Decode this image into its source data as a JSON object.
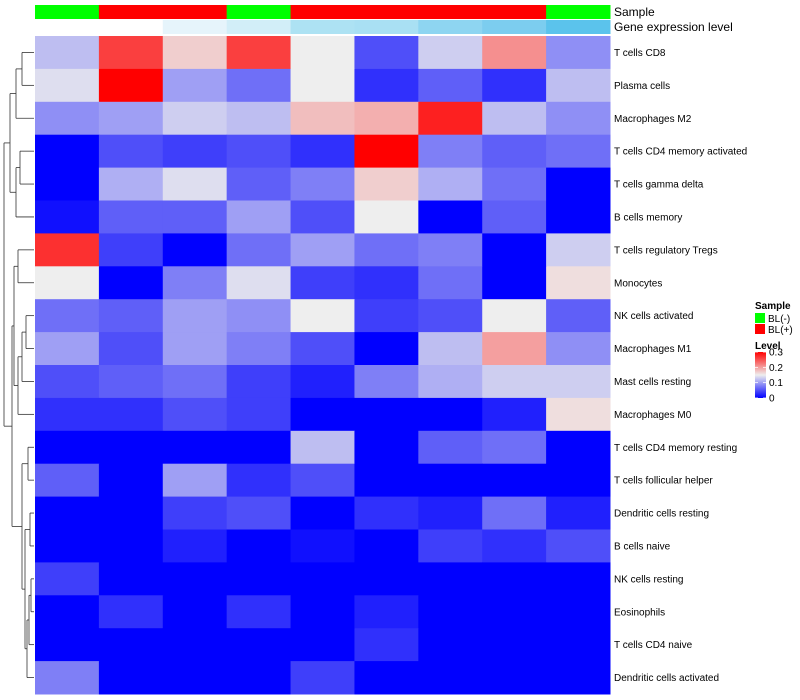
{
  "chart_data": {
    "type": "heatmap",
    "annotation_labels": [
      "Sample",
      "Gene expression level"
    ],
    "sample_groups": [
      "BL(-)",
      "BL(+)",
      "BL(+)",
      "BL(-)",
      "BL(+)",
      "BL(+)",
      "BL(+)",
      "BL(+)",
      "BL(-)"
    ],
    "gene_expression_colors": [
      "#ffffff",
      "#ffffff",
      "#e6f4fb",
      "#d2eef8",
      "#ade2f3",
      "#a9e0f3",
      "#8ed5f1",
      "#7ccdef",
      "#5bc3ec"
    ],
    "rows": [
      "T cells CD8",
      "Plasma cells",
      "Macrophages M2",
      "T cells CD4 memory activated",
      "T cells gamma delta",
      "B cells memory",
      "T cells regulatory  Tregs",
      "Monocytes",
      "NK cells activated",
      "Macrophages M1",
      "Mast cells resting",
      "Macrophages M0",
      "T cells CD4 memory resting",
      "T cells follicular helper",
      "Dendritic cells resting",
      "B cells naive",
      "NK cells resting",
      "Eosinophils",
      "T cells CD4 naive",
      "Dendritic cells activated"
    ],
    "values": [
      [
        0.12,
        0.26,
        0.17,
        0.26,
        0.15,
        0.05,
        0.13,
        0.21,
        0.09
      ],
      [
        0.14,
        0.3,
        0.1,
        0.07,
        0.15,
        0.03,
        0.06,
        0.03,
        0.12
      ],
      [
        0.09,
        0.1,
        0.13,
        0.12,
        0.18,
        0.19,
        0.28,
        0.12,
        0.09
      ],
      [
        0.0,
        0.05,
        0.04,
        0.05,
        0.03,
        0.3,
        0.08,
        0.06,
        0.07
      ],
      [
        0.0,
        0.11,
        0.14,
        0.06,
        0.08,
        0.17,
        0.11,
        0.07,
        0.0
      ],
      [
        0.01,
        0.06,
        0.06,
        0.1,
        0.05,
        0.15,
        0.0,
        0.06,
        0.0
      ],
      [
        0.27,
        0.04,
        0.0,
        0.07,
        0.1,
        0.07,
        0.08,
        0.0,
        0.13
      ],
      [
        0.15,
        0.0,
        0.08,
        0.14,
        0.04,
        0.03,
        0.07,
        0.0,
        0.16
      ],
      [
        0.07,
        0.06,
        0.1,
        0.09,
        0.15,
        0.04,
        0.05,
        0.15,
        0.06
      ],
      [
        0.1,
        0.05,
        0.1,
        0.08,
        0.05,
        0.0,
        0.12,
        0.2,
        0.09
      ],
      [
        0.05,
        0.06,
        0.07,
        0.04,
        0.02,
        0.08,
        0.11,
        0.13,
        0.13
      ],
      [
        0.03,
        0.03,
        0.05,
        0.04,
        0.0,
        0.0,
        0.0,
        0.02,
        0.16
      ],
      [
        0.0,
        0.0,
        0.0,
        0.0,
        0.12,
        0.0,
        0.06,
        0.07,
        0.0
      ],
      [
        0.06,
        0.0,
        0.1,
        0.03,
        0.05,
        0.0,
        0.0,
        0.0,
        0.0
      ],
      [
        0.0,
        0.0,
        0.04,
        0.05,
        0.0,
        0.03,
        0.02,
        0.07,
        0.02
      ],
      [
        0.0,
        0.0,
        0.02,
        0.0,
        0.01,
        0.0,
        0.04,
        0.03,
        0.05
      ],
      [
        0.04,
        0.0,
        0.0,
        0.0,
        0.0,
        0.0,
        0.0,
        0.0,
        0.0
      ],
      [
        0.0,
        0.03,
        0.0,
        0.03,
        0.0,
        0.02,
        0.0,
        0.0,
        0.0
      ],
      [
        0.0,
        0.0,
        0.0,
        0.0,
        0.0,
        0.03,
        0.0,
        0.0,
        0.0
      ],
      [
        0.08,
        0.0,
        0.0,
        0.0,
        0.04,
        0.0,
        0.0,
        0.0,
        0.0
      ]
    ],
    "color_scale": {
      "min": 0,
      "mid": 0.15,
      "max": 0.3,
      "low_color": "#0000ff",
      "mid_color": "#eeeeee",
      "high_color": "#ff0000"
    },
    "legend": {
      "placement": "right",
      "sample_title": "Sample",
      "sample_entries": [
        {
          "label": "BL(-)",
          "color": "#00ff00"
        },
        {
          "label": "BL(+)",
          "color": "#ff0000"
        }
      ],
      "level_title": "Level",
      "level_ticks": [
        {
          "value": 0.3,
          "label": "0.3"
        },
        {
          "value": 0.2,
          "label": "0.2"
        },
        {
          "value": 0.1,
          "label": "0.1"
        },
        {
          "value": 0,
          "label": "0"
        }
      ]
    },
    "dendrogram": "row clustering tree shown on the left"
  }
}
